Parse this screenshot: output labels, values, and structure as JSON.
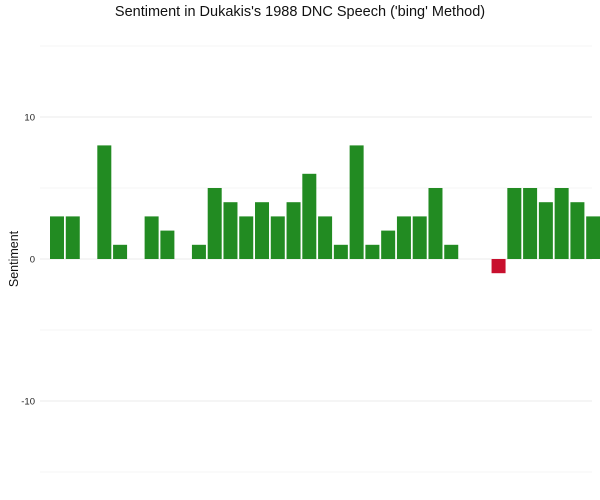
{
  "chart_data": {
    "type": "bar",
    "title": "Sentiment in Dukakis's 1988 DNC Speech ('bing' Method)",
    "xlabel": "",
    "ylabel": "Sentiment",
    "ylim": [
      -15,
      15
    ],
    "yticks": [
      -10,
      0,
      10
    ],
    "grid": true,
    "legend": "none",
    "positive_color": "#228B22",
    "negative_color": "#C8102E",
    "x": [
      1,
      2,
      3,
      4,
      5,
      6,
      7,
      8,
      9,
      10,
      11,
      12,
      13,
      14,
      15,
      16,
      17,
      18,
      19,
      20,
      21,
      22,
      23,
      24,
      25,
      26,
      27,
      28,
      29,
      30,
      31,
      32,
      33,
      34,
      35
    ],
    "values": [
      3,
      3,
      0,
      8,
      1,
      0,
      3,
      2,
      0,
      1,
      5,
      4,
      3,
      4,
      3,
      4,
      6,
      3,
      1,
      8,
      1,
      2,
      3,
      3,
      5,
      1,
      0,
      0,
      -1,
      5,
      5,
      4,
      5,
      4,
      3
    ]
  }
}
